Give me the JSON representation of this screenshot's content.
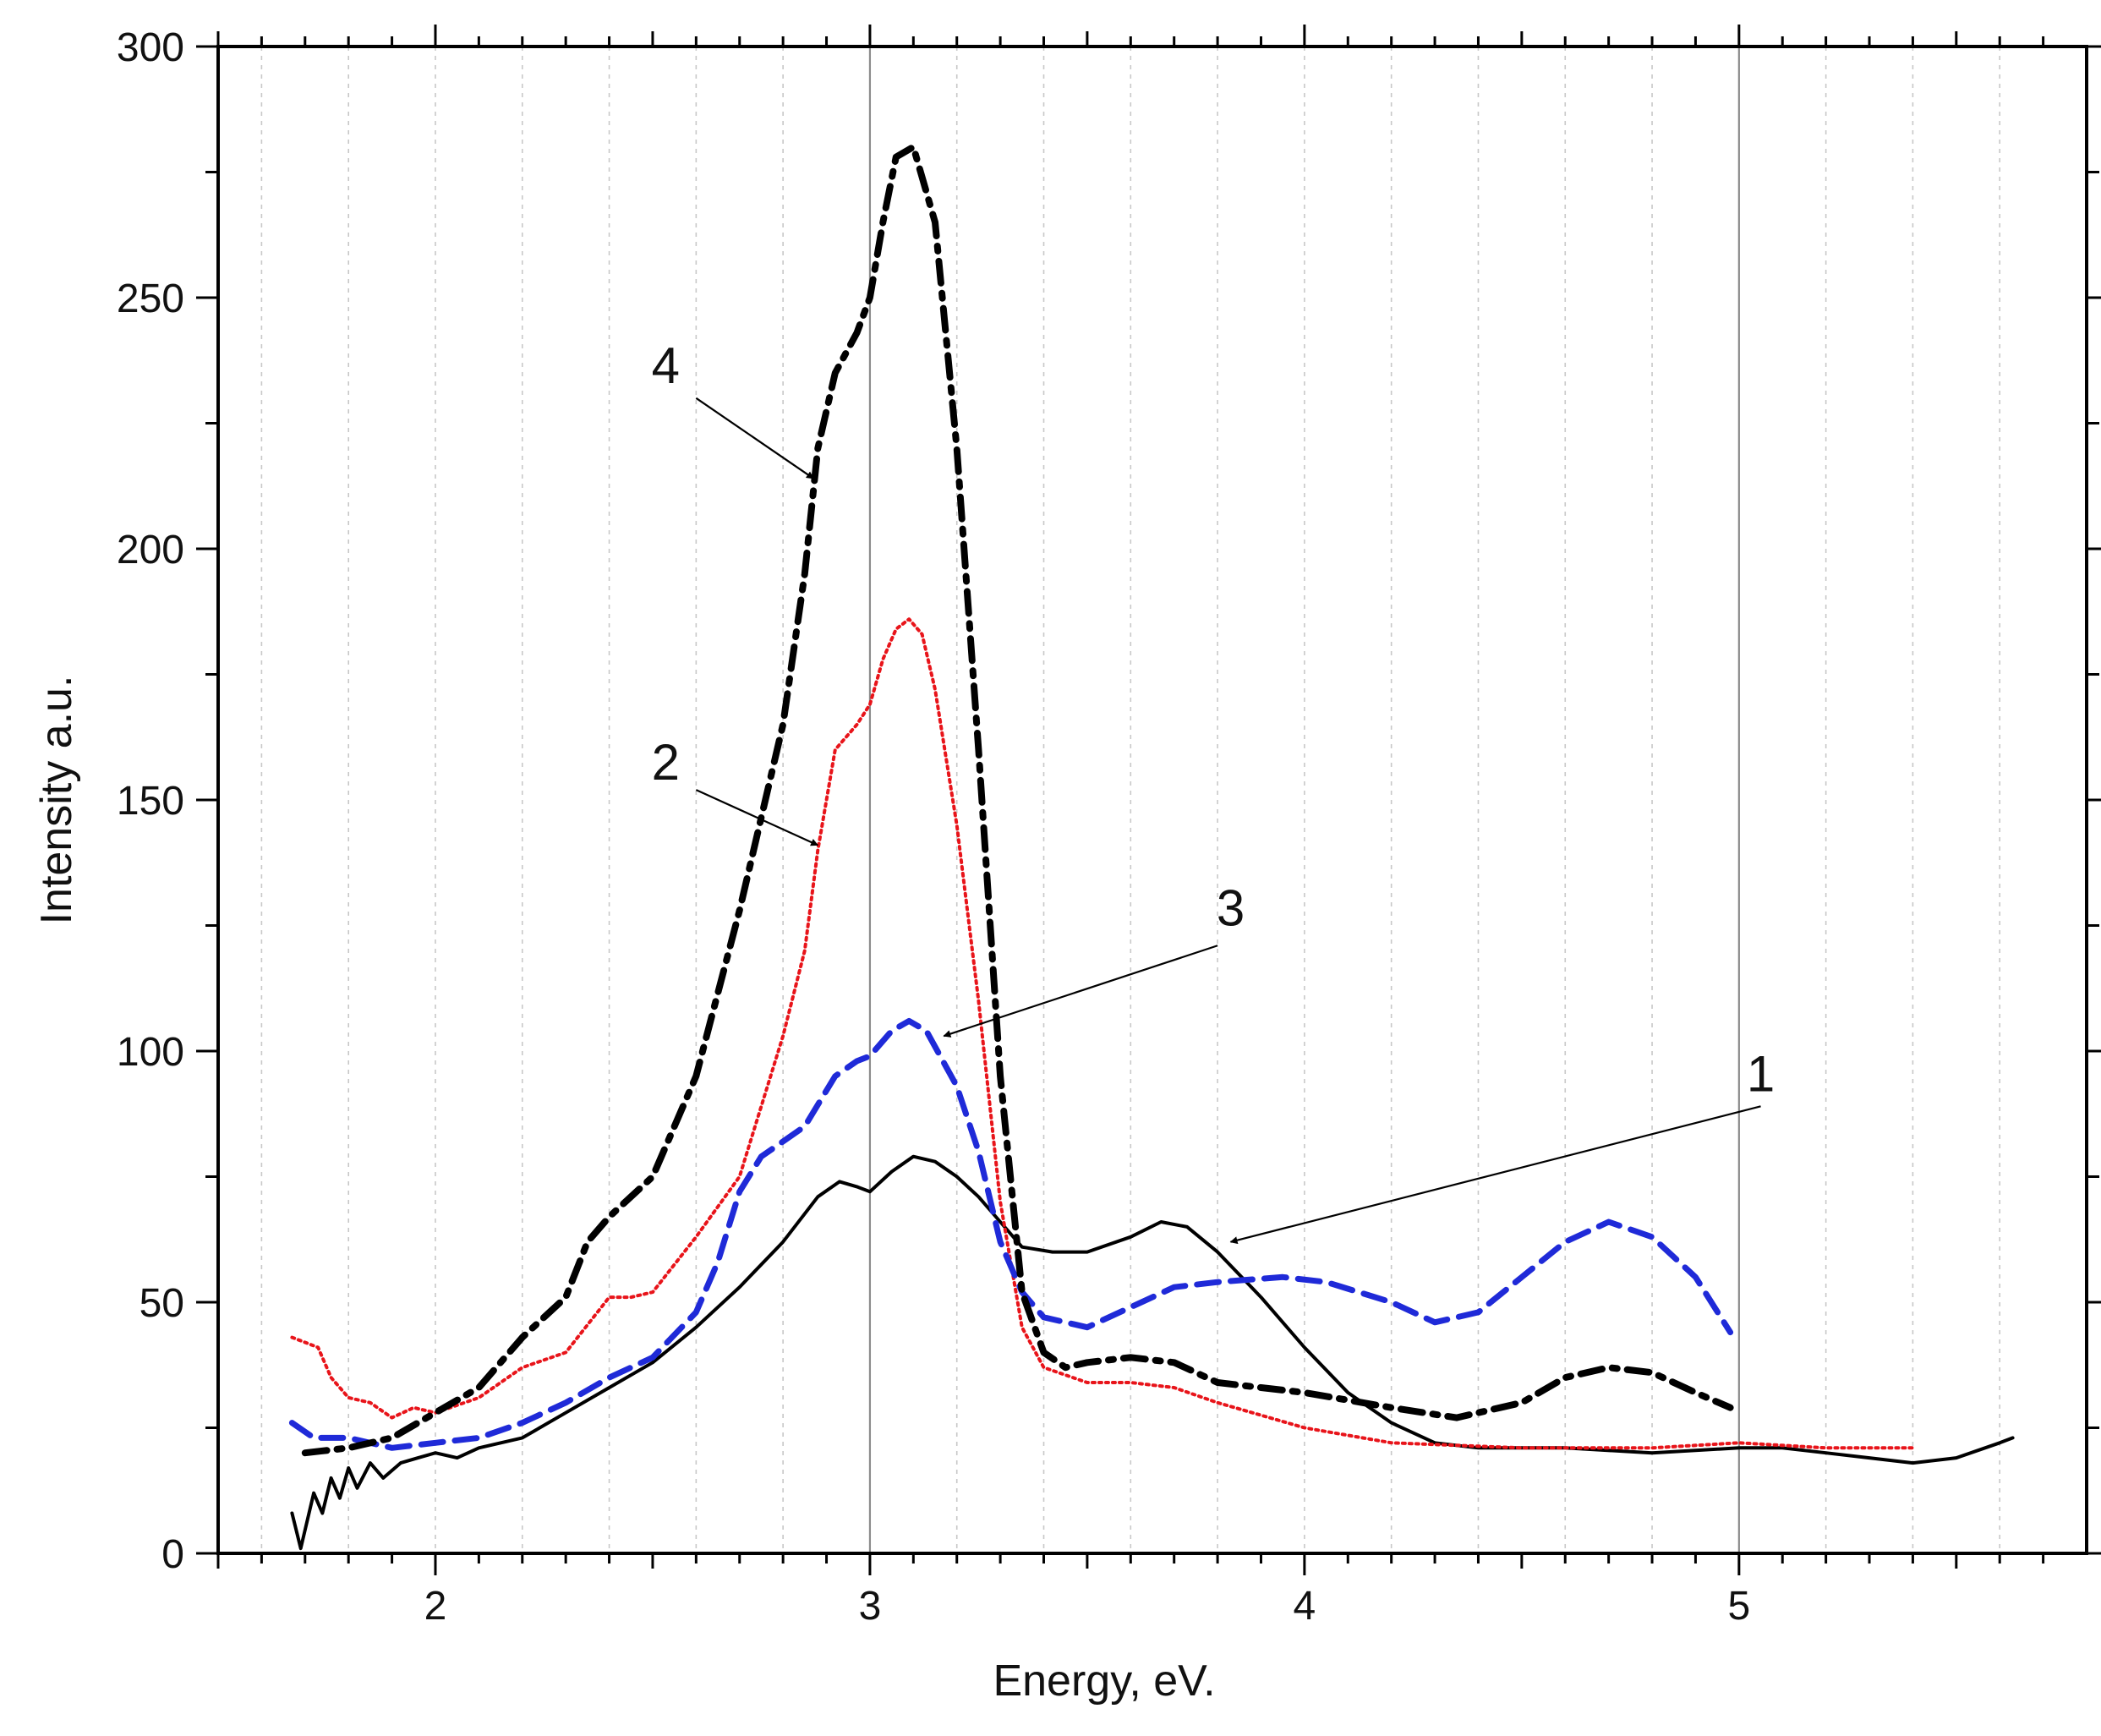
{
  "chart_data": {
    "type": "line",
    "title": "",
    "xlabel": "Energy, eV.",
    "ylabel": "Intensity a.u.",
    "xlim": [
      1.5,
      5.8
    ],
    "ylim": [
      0,
      300
    ],
    "x_ticks": [
      2,
      3,
      4,
      5
    ],
    "x_tick_labels": [
      "2",
      "3",
      "4",
      "5"
    ],
    "y_ticks": [
      0,
      50,
      100,
      150,
      200,
      250,
      300
    ],
    "y_tick_labels": [
      "0",
      "50",
      "100",
      "150",
      "200",
      "250",
      "300"
    ],
    "major_gridlines_x": [
      3,
      5
    ],
    "minor_gridlines_x": [
      1.6,
      1.8,
      2.0,
      2.2,
      2.4,
      2.6,
      2.8,
      3.2,
      3.4,
      3.6,
      3.8,
      4.0,
      4.2,
      4.4,
      4.6,
      4.8,
      5.2,
      5.4,
      5.6
    ],
    "series": [
      {
        "name": "1",
        "color": "#000000",
        "style": "solid",
        "points": [
          [
            1.67,
            8
          ],
          [
            1.69,
            1
          ],
          [
            1.72,
            12
          ],
          [
            1.74,
            8
          ],
          [
            1.76,
            15
          ],
          [
            1.78,
            11
          ],
          [
            1.8,
            17
          ],
          [
            1.82,
            13
          ],
          [
            1.85,
            18
          ],
          [
            1.88,
            15
          ],
          [
            1.92,
            18
          ],
          [
            1.96,
            19
          ],
          [
            2.0,
            20
          ],
          [
            2.05,
            19
          ],
          [
            2.1,
            21
          ],
          [
            2.2,
            23
          ],
          [
            2.3,
            28
          ],
          [
            2.4,
            33
          ],
          [
            2.5,
            38
          ],
          [
            2.6,
            45
          ],
          [
            2.7,
            53
          ],
          [
            2.8,
            62
          ],
          [
            2.88,
            71
          ],
          [
            2.93,
            74
          ],
          [
            2.97,
            73
          ],
          [
            3.0,
            72
          ],
          [
            3.05,
            76
          ],
          [
            3.1,
            79
          ],
          [
            3.15,
            78
          ],
          [
            3.2,
            75
          ],
          [
            3.25,
            71
          ],
          [
            3.3,
            66
          ],
          [
            3.35,
            61
          ],
          [
            3.42,
            60
          ],
          [
            3.5,
            60
          ],
          [
            3.6,
            63
          ],
          [
            3.67,
            66
          ],
          [
            3.73,
            65
          ],
          [
            3.8,
            60
          ],
          [
            3.9,
            51
          ],
          [
            4.0,
            41
          ],
          [
            4.1,
            32
          ],
          [
            4.2,
            26
          ],
          [
            4.3,
            22
          ],
          [
            4.4,
            21
          ],
          [
            4.6,
            21
          ],
          [
            4.8,
            20
          ],
          [
            5.0,
            21
          ],
          [
            5.1,
            21
          ],
          [
            5.2,
            20
          ],
          [
            5.3,
            19
          ],
          [
            5.4,
            18
          ],
          [
            5.5,
            19
          ],
          [
            5.6,
            22
          ],
          [
            5.63,
            23
          ]
        ]
      },
      {
        "name": "2",
        "color": "#e8141a",
        "style": "dotted",
        "points": [
          [
            1.67,
            43
          ],
          [
            1.7,
            42
          ],
          [
            1.73,
            41
          ],
          [
            1.76,
            35
          ],
          [
            1.8,
            31
          ],
          [
            1.85,
            30
          ],
          [
            1.9,
            27
          ],
          [
            1.95,
            29
          ],
          [
            2.0,
            28
          ],
          [
            2.1,
            31
          ],
          [
            2.2,
            37
          ],
          [
            2.3,
            40
          ],
          [
            2.4,
            51
          ],
          [
            2.45,
            51
          ],
          [
            2.5,
            52
          ],
          [
            2.6,
            63
          ],
          [
            2.7,
            75
          ],
          [
            2.8,
            103
          ],
          [
            2.85,
            120
          ],
          [
            2.88,
            140
          ],
          [
            2.92,
            160
          ],
          [
            2.97,
            165
          ],
          [
            3.0,
            169
          ],
          [
            3.03,
            178
          ],
          [
            3.06,
            184
          ],
          [
            3.09,
            186
          ],
          [
            3.12,
            183
          ],
          [
            3.15,
            172
          ],
          [
            3.2,
            145
          ],
          [
            3.25,
            110
          ],
          [
            3.3,
            70
          ],
          [
            3.35,
            45
          ],
          [
            3.4,
            37
          ],
          [
            3.5,
            34
          ],
          [
            3.6,
            34
          ],
          [
            3.7,
            33
          ],
          [
            3.8,
            30
          ],
          [
            4.0,
            25
          ],
          [
            4.2,
            22
          ],
          [
            4.5,
            21
          ],
          [
            4.8,
            21
          ],
          [
            5.0,
            22
          ],
          [
            5.2,
            21
          ],
          [
            5.4,
            21
          ]
        ]
      },
      {
        "name": "3",
        "color": "#1f2ad8",
        "style": "dashed",
        "points": [
          [
            1.67,
            26
          ],
          [
            1.72,
            23
          ],
          [
            1.8,
            23
          ],
          [
            1.9,
            21
          ],
          [
            2.0,
            22
          ],
          [
            2.1,
            23
          ],
          [
            2.2,
            26
          ],
          [
            2.3,
            30
          ],
          [
            2.4,
            35
          ],
          [
            2.5,
            39
          ],
          [
            2.6,
            48
          ],
          [
            2.65,
            58
          ],
          [
            2.7,
            72
          ],
          [
            2.75,
            79
          ],
          [
            2.85,
            85
          ],
          [
            2.92,
            95
          ],
          [
            2.97,
            98
          ],
          [
            3.0,
            99
          ],
          [
            3.05,
            104
          ],
          [
            3.09,
            106
          ],
          [
            3.13,
            104
          ],
          [
            3.2,
            93
          ],
          [
            3.25,
            80
          ],
          [
            3.3,
            62
          ],
          [
            3.35,
            52
          ],
          [
            3.4,
            47
          ],
          [
            3.5,
            45
          ],
          [
            3.6,
            49
          ],
          [
            3.7,
            53
          ],
          [
            3.8,
            54
          ],
          [
            3.95,
            55
          ],
          [
            4.05,
            54
          ],
          [
            4.2,
            50
          ],
          [
            4.3,
            46
          ],
          [
            4.4,
            48
          ],
          [
            4.5,
            55
          ],
          [
            4.6,
            62
          ],
          [
            4.7,
            66
          ],
          [
            4.8,
            63
          ],
          [
            4.9,
            55
          ],
          [
            4.98,
            44
          ]
        ]
      },
      {
        "name": "4",
        "color": "#000000",
        "style": "dashdot",
        "points": [
          [
            1.7,
            20
          ],
          [
            1.8,
            21
          ],
          [
            1.9,
            23
          ],
          [
            2.0,
            28
          ],
          [
            2.1,
            33
          ],
          [
            2.2,
            43
          ],
          [
            2.3,
            51
          ],
          [
            2.35,
            62
          ],
          [
            2.4,
            67
          ],
          [
            2.5,
            75
          ],
          [
            2.6,
            95
          ],
          [
            2.7,
            128
          ],
          [
            2.8,
            165
          ],
          [
            2.85,
            195
          ],
          [
            2.88,
            220
          ],
          [
            2.92,
            235
          ],
          [
            2.97,
            243
          ],
          [
            3.0,
            250
          ],
          [
            3.03,
            265
          ],
          [
            3.06,
            278
          ],
          [
            3.1,
            280
          ],
          [
            3.15,
            265
          ],
          [
            3.2,
            220
          ],
          [
            3.25,
            160
          ],
          [
            3.3,
            95
          ],
          [
            3.35,
            52
          ],
          [
            3.4,
            40
          ],
          [
            3.45,
            37
          ],
          [
            3.5,
            38
          ],
          [
            3.6,
            39
          ],
          [
            3.7,
            38
          ],
          [
            3.8,
            34
          ],
          [
            3.9,
            33
          ],
          [
            4.0,
            32
          ],
          [
            4.2,
            29
          ],
          [
            4.35,
            27
          ],
          [
            4.5,
            30
          ],
          [
            4.6,
            35
          ],
          [
            4.7,
            37
          ],
          [
            4.8,
            36
          ],
          [
            4.9,
            32
          ],
          [
            4.98,
            29
          ]
        ]
      }
    ],
    "annotations": [
      {
        "label": "1",
        "text_at": [
          5.05,
          92
        ],
        "arrow_from": [
          5.05,
          89
        ],
        "arrow_to": [
          3.83,
          62
        ]
      },
      {
        "label": "2",
        "text_at": [
          2.53,
          154
        ],
        "arrow_from": [
          2.6,
          152
        ],
        "arrow_to": [
          2.88,
          141
        ]
      },
      {
        "label": "3",
        "text_at": [
          3.83,
          125
        ],
        "arrow_from": [
          3.8,
          121
        ],
        "arrow_to": [
          3.17,
          103
        ]
      },
      {
        "label": "4",
        "text_at": [
          2.53,
          233
        ],
        "arrow_from": [
          2.6,
          230
        ],
        "arrow_to": [
          2.87,
          214
        ]
      }
    ]
  }
}
